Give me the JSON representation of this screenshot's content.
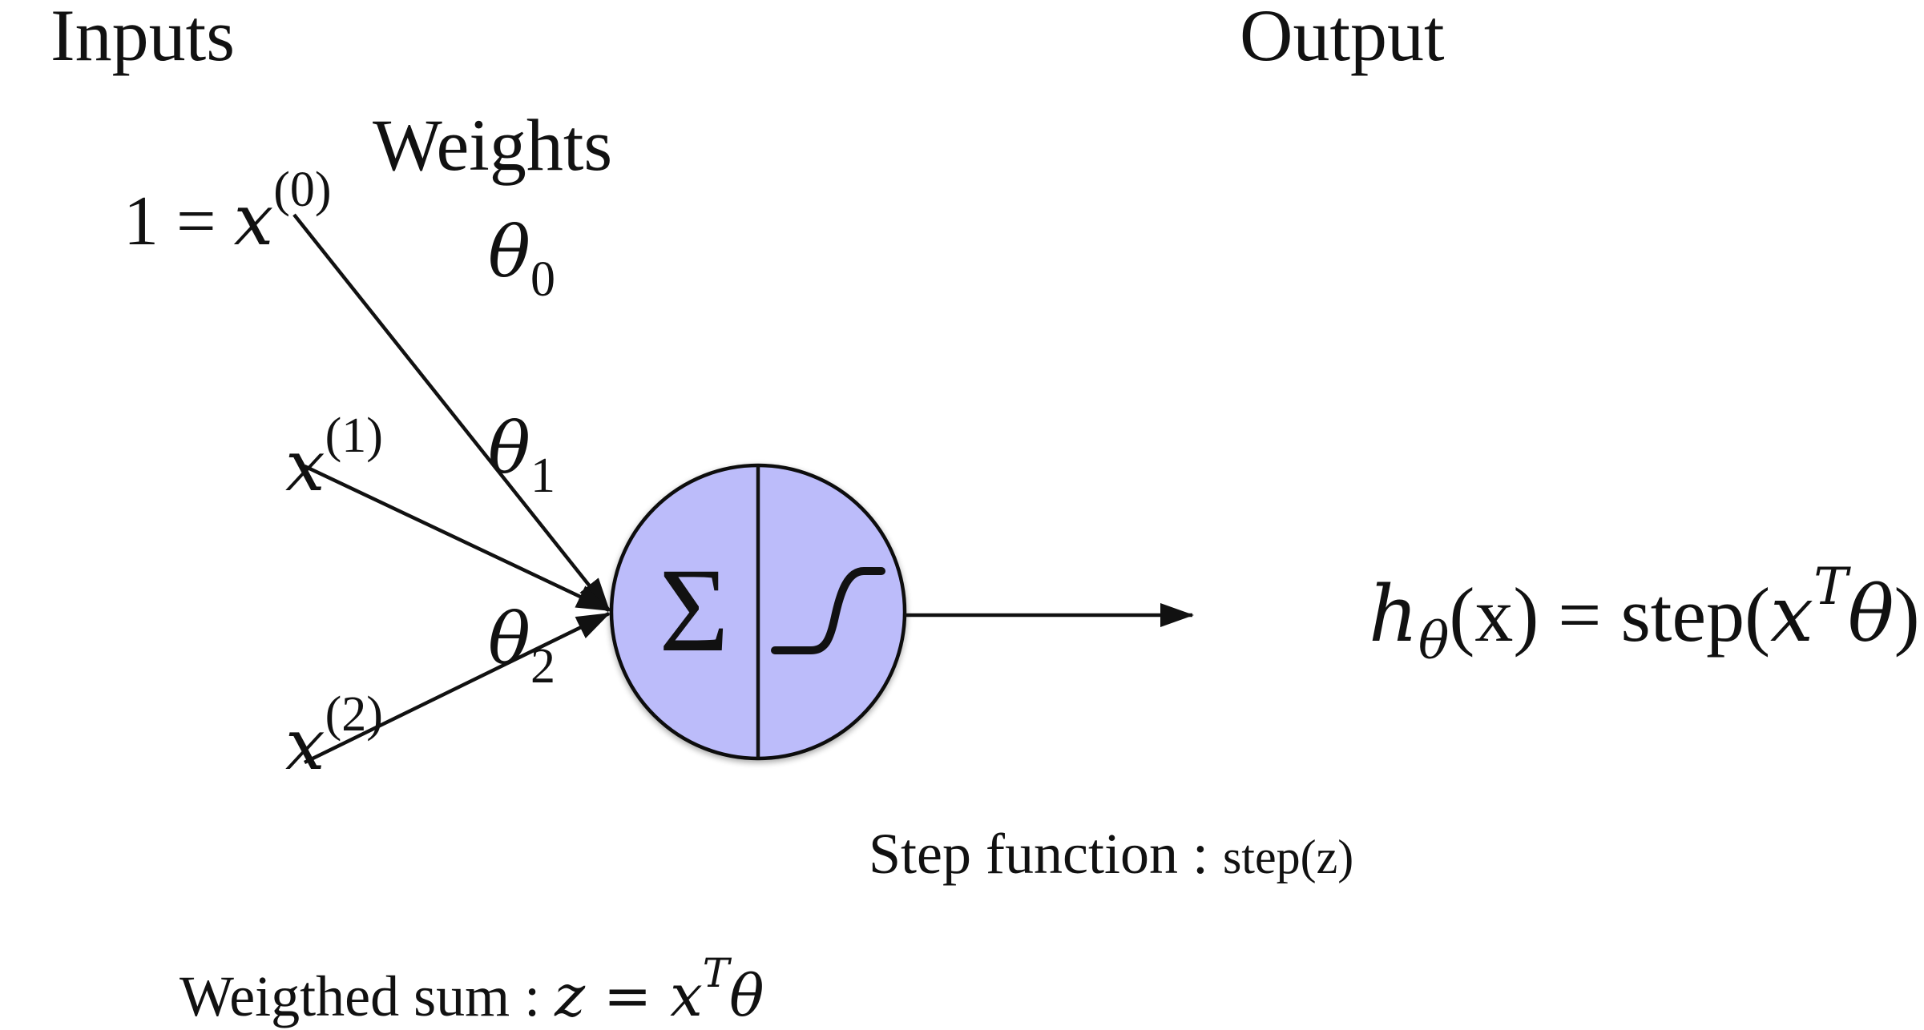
{
  "headings": {
    "inputs": "Inputs",
    "weights": "Weights",
    "output": "Output"
  },
  "inputs": [
    {
      "prefix": "1 = ",
      "var": "x",
      "sup": "(0)"
    },
    {
      "prefix": "",
      "var": "x",
      "sup": "(1)"
    },
    {
      "prefix": "",
      "var": "x",
      "sup": "(2)"
    }
  ],
  "weights": [
    {
      "sym": "θ",
      "sub": "0"
    },
    {
      "sym": "θ",
      "sub": "1"
    },
    {
      "sym": "θ",
      "sub": "2"
    }
  ],
  "neuron": {
    "sum_symbol": "Σ",
    "fill": "#bcbcfa",
    "stroke": "#111111",
    "activation_icon": "step-curve-icon"
  },
  "output_formula": {
    "h": "h",
    "h_sub": "θ",
    "arg": "(x)",
    "equals": " = ",
    "fn": "step",
    "open": "(",
    "x": "x",
    "x_sup": "T",
    "theta": "θ",
    "close": ")"
  },
  "captions": {
    "step_label": "Step function : ",
    "step_fn": "step",
    "step_arg": "(z)",
    "sum_label": "Weigthed sum : ",
    "sum_formula": "z = x",
    "sum_sup": "T",
    "sum_theta": "θ"
  }
}
